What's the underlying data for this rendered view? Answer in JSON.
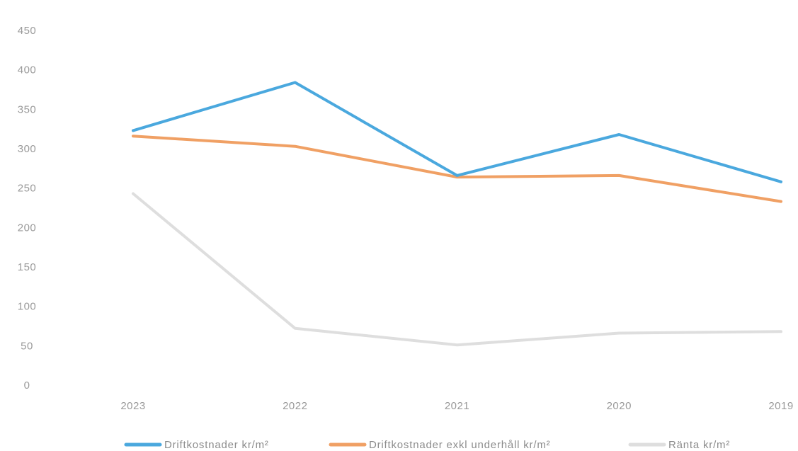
{
  "chart_data": {
    "type": "line",
    "categories": [
      "2023",
      "2022",
      "2021",
      "2020",
      "2019"
    ],
    "series": [
      {
        "name": "Driftkostnader kr/m²",
        "color": "#4aa8de",
        "values": [
          323,
          384,
          266,
          318,
          258
        ]
      },
      {
        "name": "Driftkostnader exkl underhåll kr/m²",
        "color": "#f0a064",
        "values": [
          316,
          303,
          264,
          266,
          233
        ]
      },
      {
        "name": "Ränta kr/m²",
        "color": "#dedede",
        "values": [
          243,
          72,
          51,
          66,
          68
        ]
      }
    ],
    "yticks": [
      "0",
      "50",
      "100",
      "150",
      "200",
      "250",
      "300",
      "350",
      "400",
      "450"
    ],
    "ylim": [
      0,
      450
    ],
    "grid": false,
    "legend_position": "bottom"
  }
}
